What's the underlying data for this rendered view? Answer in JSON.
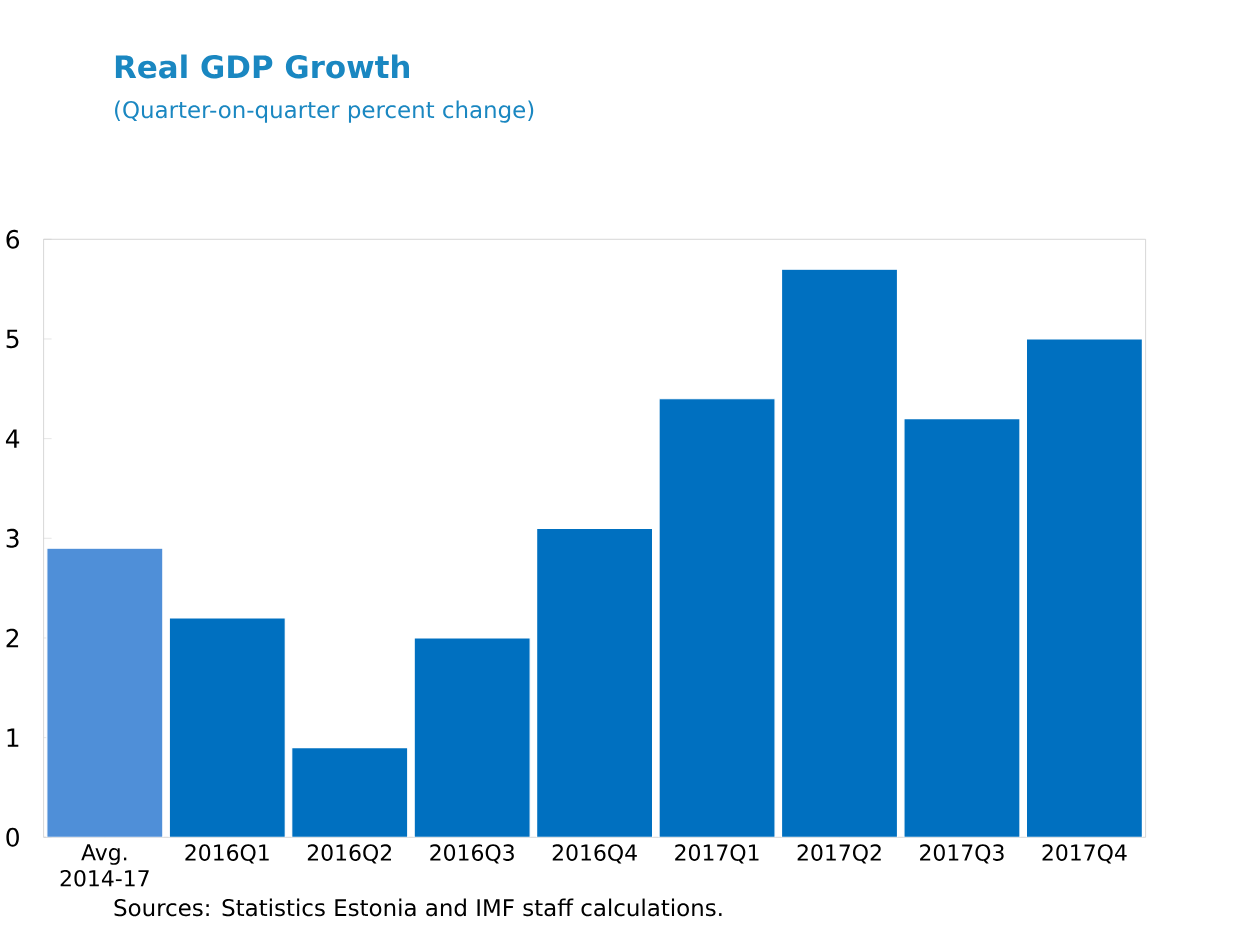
{
  "chart_data": {
    "type": "bar",
    "title": "Real GDP Growth",
    "subtitle": "(Quarter-on-quarter percent change)",
    "categories": [
      "Avg. 2014-17",
      "2016Q1",
      "2016Q2",
      "2016Q3",
      "2016Q4",
      "2017Q1",
      "2017Q2",
      "2017Q3",
      "2017Q4"
    ],
    "values": [
      2.9,
      2.2,
      0.9,
      2.0,
      3.1,
      4.4,
      5.7,
      4.2,
      5.0
    ],
    "colors": [
      "#4f8fd8",
      "#0070c0",
      "#0070c0",
      "#0070c0",
      "#0070c0",
      "#0070c0",
      "#0070c0",
      "#0070c0",
      "#0070c0"
    ],
    "ylim": [
      0,
      6
    ],
    "yticks": [
      0,
      1,
      2,
      3,
      4,
      5,
      6
    ],
    "grid": false,
    "annotations": [
      "Sources: Statistics Estonia and IMF staff calculations."
    ]
  }
}
